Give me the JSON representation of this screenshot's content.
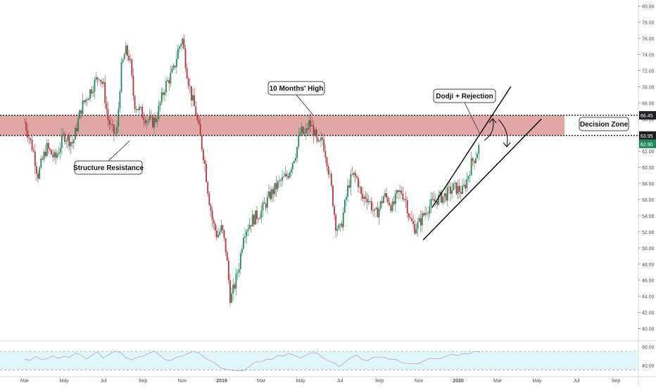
{
  "chart_data": {
    "type": "candlestick",
    "title": "",
    "xlabel": "",
    "ylabel": "",
    "x_ticks": [
      "Mar",
      "May",
      "Jul",
      "Sep",
      "Nov",
      "2019",
      "Mar",
      "May",
      "Jul",
      "Sep",
      "Nov",
      "2020",
      "Mar",
      "May",
      "Jul",
      "Sep"
    ],
    "y_ticks": [
      "40.00",
      "42.00",
      "44.00",
      "46.00",
      "48.00",
      "50.00",
      "52.00",
      "54.00",
      "56.00",
      "58.00",
      "60.00",
      "62.00",
      "64.00",
      "66.00",
      "68.00",
      "70.00",
      "72.00",
      "74.00",
      "76.00",
      "78.00",
      "80.00"
    ],
    "ylim": [
      39,
      80.5
    ],
    "x_range_weeks": [
      0,
      140
    ],
    "weeks_per_x_tick": 9,
    "price_series": [
      {
        "t": 0,
        "y": 65.6
      },
      {
        "t": 2,
        "y": 62.0
      },
      {
        "t": 3,
        "y": 59.0
      },
      {
        "t": 5,
        "y": 62.5
      },
      {
        "t": 7,
        "y": 61.0
      },
      {
        "t": 9,
        "y": 64.0
      },
      {
        "t": 11,
        "y": 63.0
      },
      {
        "t": 13,
        "y": 67.5
      },
      {
        "t": 15,
        "y": 69.5
      },
      {
        "t": 17,
        "y": 71.5
      },
      {
        "t": 18,
        "y": 70.0
      },
      {
        "t": 19,
        "y": 66.0
      },
      {
        "t": 20,
        "y": 64.5
      },
      {
        "t": 21,
        "y": 64.0
      },
      {
        "t": 22,
        "y": 72.0
      },
      {
        "t": 23,
        "y": 74.5
      },
      {
        "t": 24,
        "y": 73.5
      },
      {
        "t": 25,
        "y": 68.0
      },
      {
        "t": 27,
        "y": 66.5
      },
      {
        "t": 29,
        "y": 65.5
      },
      {
        "t": 30,
        "y": 66.0
      },
      {
        "t": 32,
        "y": 70.0
      },
      {
        "t": 34,
        "y": 72.0
      },
      {
        "t": 35,
        "y": 74.5
      },
      {
        "t": 36,
        "y": 76.0
      },
      {
        "t": 37,
        "y": 72.0
      },
      {
        "t": 38,
        "y": 69.0
      },
      {
        "t": 39,
        "y": 67.0
      },
      {
        "t": 40,
        "y": 64.0
      },
      {
        "t": 41,
        "y": 61.0
      },
      {
        "t": 42,
        "y": 56.5
      },
      {
        "t": 43,
        "y": 53.0
      },
      {
        "t": 44,
        "y": 51.5
      },
      {
        "t": 45,
        "y": 52.5
      },
      {
        "t": 46,
        "y": 49.5
      },
      {
        "t": 47,
        "y": 43.5
      },
      {
        "t": 48,
        "y": 45.5
      },
      {
        "t": 49,
        "y": 48.0
      },
      {
        "t": 50,
        "y": 52.0
      },
      {
        "t": 52,
        "y": 53.5
      },
      {
        "t": 54,
        "y": 54.5
      },
      {
        "t": 56,
        "y": 56.5
      },
      {
        "t": 58,
        "y": 58.0
      },
      {
        "t": 60,
        "y": 59.0
      },
      {
        "t": 62,
        "y": 62.0
      },
      {
        "t": 63,
        "y": 64.5
      },
      {
        "t": 64,
        "y": 64.0
      },
      {
        "t": 65,
        "y": 65.5
      },
      {
        "t": 66,
        "y": 64.5
      },
      {
        "t": 67,
        "y": 62.5
      },
      {
        "t": 68,
        "y": 63.5
      },
      {
        "t": 69,
        "y": 61.0
      },
      {
        "t": 70,
        "y": 57.5
      },
      {
        "t": 71,
        "y": 53.0
      },
      {
        "t": 72,
        "y": 52.0
      },
      {
        "t": 73,
        "y": 55.0
      },
      {
        "t": 74,
        "y": 58.0
      },
      {
        "t": 75,
        "y": 59.0
      },
      {
        "t": 76,
        "y": 58.5
      },
      {
        "t": 77,
        "y": 56.0
      },
      {
        "t": 78,
        "y": 56.5
      },
      {
        "t": 79,
        "y": 55.5
      },
      {
        "t": 80,
        "y": 54.0
      },
      {
        "t": 81,
        "y": 55.0
      },
      {
        "t": 82,
        "y": 56.5
      },
      {
        "t": 83,
        "y": 56.0
      },
      {
        "t": 84,
        "y": 55.0
      },
      {
        "t": 85,
        "y": 56.5
      },
      {
        "t": 86,
        "y": 57.0
      },
      {
        "t": 87,
        "y": 56.0
      },
      {
        "t": 88,
        "y": 53.5
      },
      {
        "t": 89,
        "y": 52.5
      },
      {
        "t": 90,
        "y": 53.0
      },
      {
        "t": 92,
        "y": 55.0
      },
      {
        "t": 94,
        "y": 56.0
      },
      {
        "t": 96,
        "y": 56.5
      },
      {
        "t": 98,
        "y": 57.5
      },
      {
        "t": 100,
        "y": 57.0
      },
      {
        "t": 101,
        "y": 58.5
      },
      {
        "t": 102,
        "y": 60.5
      },
      {
        "t": 103,
        "y": 61.5
      },
      {
        "t": 104,
        "y": 62.9
      }
    ],
    "zones": [
      {
        "name": "Decision Zone",
        "top": 66.45,
        "bottom": 63.95,
        "fill": "#c95f5f"
      }
    ],
    "channel_lines": [
      {
        "name": "upper",
        "from": {
          "t": 93,
          "y": 55.0
        },
        "to": {
          "t": 111,
          "y": 70.0
        }
      },
      {
        "name": "lower",
        "from": {
          "t": 91,
          "y": 51.0
        },
        "to": {
          "t": 118,
          "y": 66.0
        }
      }
    ],
    "annotations": [
      {
        "text": "Structure Resistance",
        "points_to": {
          "t": 24,
          "y": 63.3
        }
      },
      {
        "text": "10 Months' High",
        "points_to": {
          "t": 66,
          "y": 66.4
        }
      },
      {
        "text": "Dodji + Rejection",
        "points_to": {
          "t": 104,
          "y": 64.1
        }
      },
      {
        "text": "Decision Zone",
        "points_to": {
          "t": 128,
          "y": 65.2
        }
      }
    ],
    "price_tags": [
      {
        "text": "66.45",
        "y": 66.45,
        "style": "dark"
      },
      {
        "text": "63.95",
        "y": 63.95,
        "style": "dark"
      },
      {
        "text": "62.90",
        "y": 62.9,
        "style": "green"
      }
    ],
    "rsi": {
      "yticks": [
        "80.00",
        "40.00"
      ],
      "ylim": [
        20,
        90
      ],
      "upper_band": 70,
      "lower_band": 30,
      "values": [
        55,
        52,
        58,
        50,
        56,
        60,
        54,
        62,
        58,
        66,
        60,
        55,
        62,
        68,
        58,
        64,
        70,
        66,
        58,
        52,
        56,
        62,
        66,
        70,
        60,
        54,
        50,
        56,
        62,
        66,
        70,
        64,
        58,
        50,
        42,
        36,
        32,
        28,
        26,
        30,
        38,
        46,
        50,
        54,
        52,
        58,
        62,
        66,
        60,
        58,
        62,
        66,
        64,
        58,
        50,
        44,
        40,
        48,
        56,
        60,
        54,
        50,
        56,
        60,
        58,
        52,
        50,
        48,
        44,
        42,
        46,
        50,
        54,
        52,
        56,
        60,
        62,
        64,
        66,
        64,
        68,
        70
      ]
    },
    "legend": "none",
    "grid": false
  }
}
